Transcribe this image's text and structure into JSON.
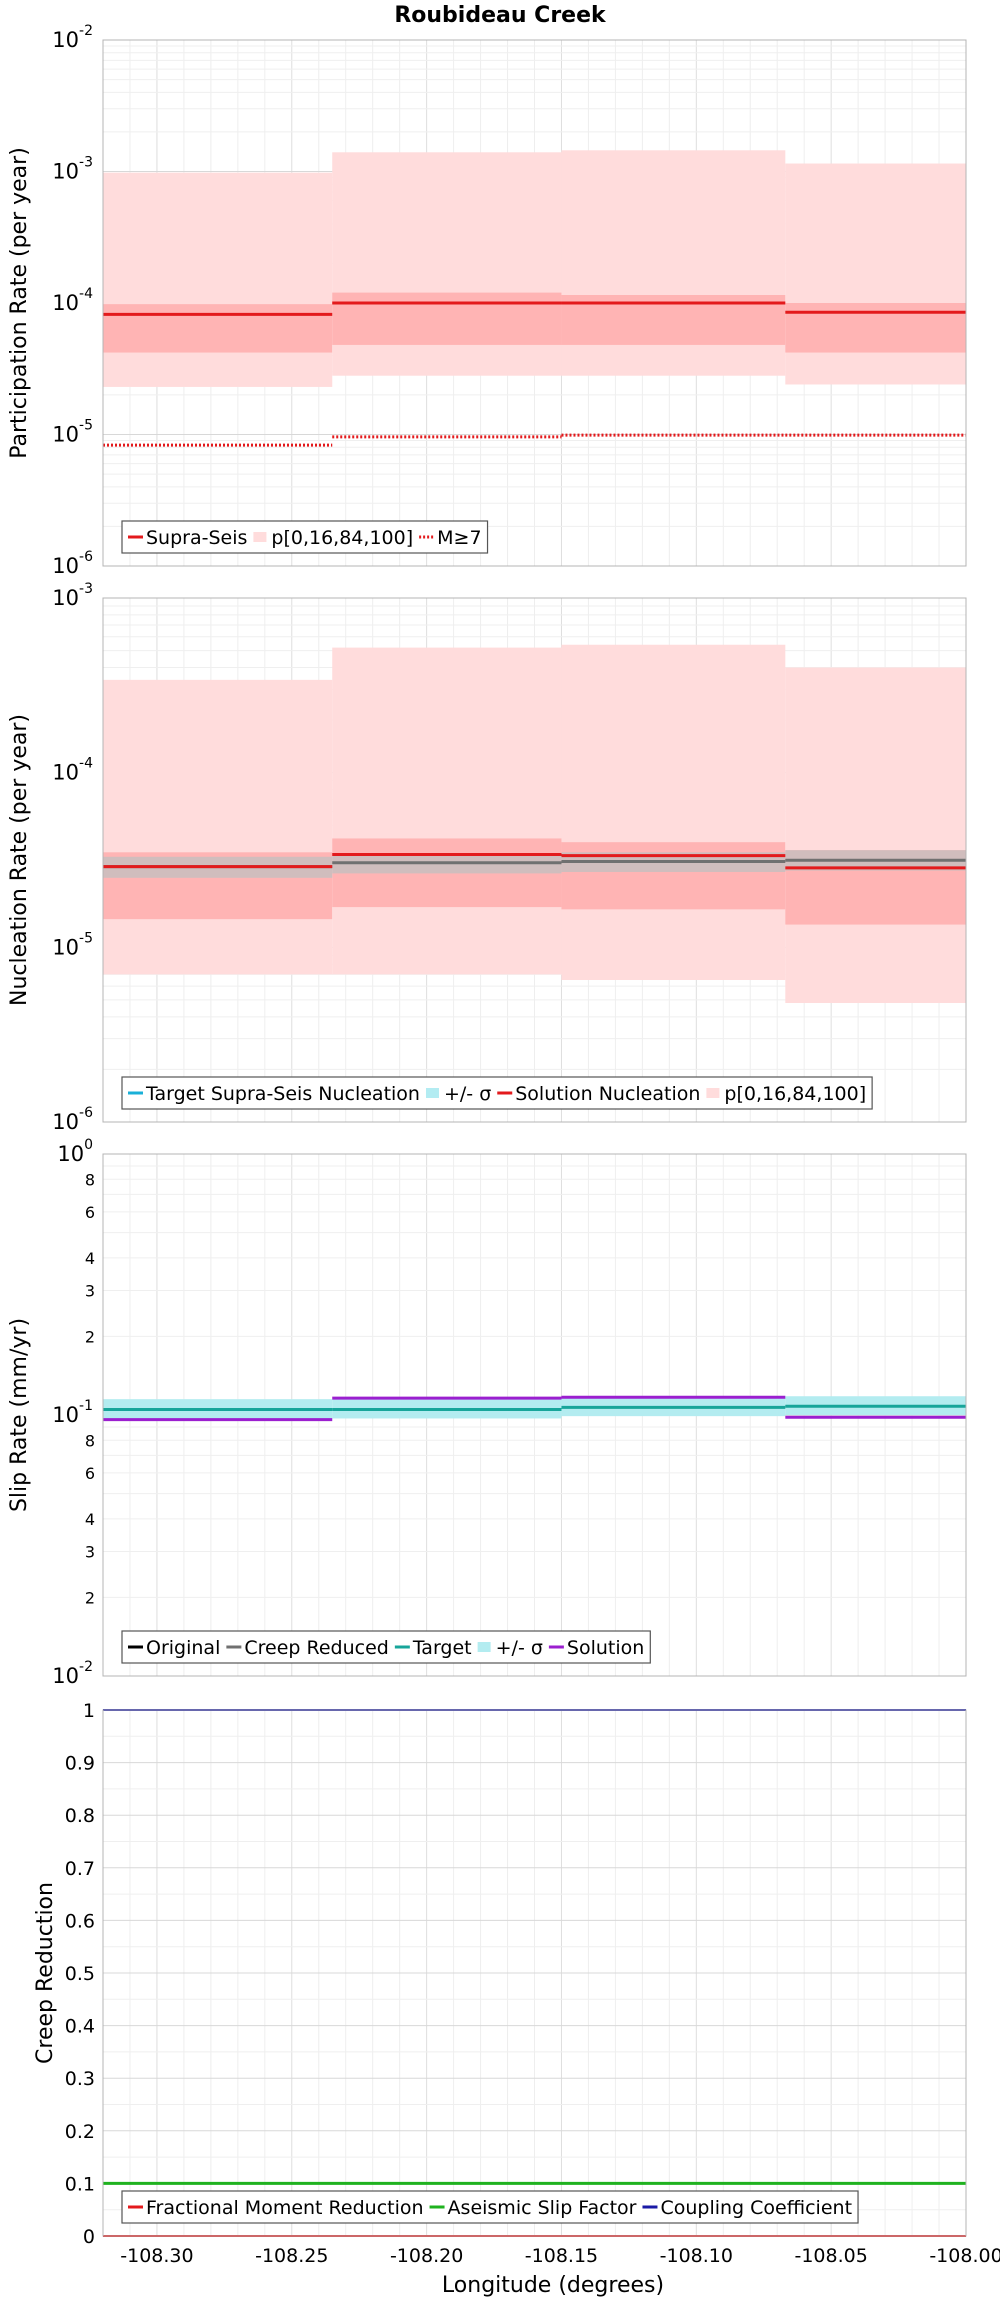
{
  "title": "Roubideau Creek",
  "xlabel": "Longitude (degrees)",
  "chart_data": [
    {
      "type": "step",
      "ylabel": "Participation Rate (per year)",
      "yscale": "log",
      "ylim": [
        1e-06,
        0.01
      ],
      "xlim": [
        -108.32,
        -108.0
      ],
      "x_tick_labels": [
        "-108.30",
        "-108.25",
        "-108.20",
        "-108.15",
        "-108.10",
        "-108.05",
        "-108.00"
      ],
      "y_tick_labels": [
        {
          "base": "10",
          "exp": "-6"
        },
        {
          "base": "10",
          "exp": "-5"
        },
        {
          "base": "10",
          "exp": "-4"
        },
        {
          "base": "10",
          "exp": "-3"
        },
        {
          "base": "10",
          "exp": "-2"
        }
      ],
      "segments": [
        {
          "x": [
            -108.32,
            -108.235
          ],
          "supra_seis": 8.2e-05,
          "p0": 2.3e-05,
          "p16": 4.2e-05,
          "p84": 9.8e-05,
          "p100": 0.00098,
          "m_ge_7": 8.3e-06
        },
        {
          "x": [
            -108.235,
            -108.15
          ],
          "supra_seis": 0.0001,
          "p0": 2.8e-05,
          "p16": 4.8e-05,
          "p84": 0.00012,
          "p100": 0.0014,
          "m_ge_7": 9.6e-06
        },
        {
          "x": [
            -108.15,
            -108.067
          ],
          "supra_seis": 0.0001,
          "p0": 2.8e-05,
          "p16": 4.8e-05,
          "p84": 0.000115,
          "p100": 0.00145,
          "m_ge_7": 9.9e-06
        },
        {
          "x": [
            -108.067,
            -108.0
          ],
          "supra_seis": 8.5e-05,
          "p0": 2.4e-05,
          "p16": 4.2e-05,
          "p84": 0.0001,
          "p100": 0.00115,
          "m_ge_7": 9.9e-06
        }
      ],
      "legend": [
        "Supra-Seis",
        "p[0,16,84,100]",
        "M≥7"
      ],
      "colors": {
        "supra_seis": "#e31a1c",
        "band_outer": "#ffdcdc",
        "band_inner": "#ffb4b4",
        "m7": "#e31a1c"
      }
    },
    {
      "type": "step",
      "ylabel": "Nucleation Rate (per year)",
      "yscale": "log",
      "ylim": [
        1e-06,
        0.001
      ],
      "xlim": [
        -108.32,
        -108.0
      ],
      "x_tick_labels": [
        "-108.30",
        "-108.25",
        "-108.20",
        "-108.15",
        "-108.10",
        "-108.05",
        "-108.00"
      ],
      "y_tick_labels": [
        {
          "base": "10",
          "exp": "-6"
        },
        {
          "base": "10",
          "exp": "-5"
        },
        {
          "base": "10",
          "exp": "-4"
        },
        {
          "base": "10",
          "exp": "-3"
        }
      ],
      "segments": [
        {
          "x": [
            -108.32,
            -108.235
          ],
          "target": 2.9e-05,
          "target_lo": 2.5e-05,
          "target_hi": 3.3e-05,
          "solution": 2.9e-05,
          "p0": 7e-06,
          "p16": 1.45e-05,
          "p84": 3.5e-05,
          "p100": 0.00034
        },
        {
          "x": [
            -108.235,
            -108.15
          ],
          "target": 3.05e-05,
          "target_lo": 2.65e-05,
          "target_hi": 3.45e-05,
          "solution": 3.4e-05,
          "p0": 7e-06,
          "p16": 1.7e-05,
          "p84": 4.2e-05,
          "p100": 0.00052
        },
        {
          "x": [
            -108.15,
            -108.067
          ],
          "target": 3.1e-05,
          "target_lo": 2.7e-05,
          "target_hi": 3.5e-05,
          "solution": 3.35e-05,
          "p0": 6.5e-06,
          "p16": 1.65e-05,
          "p84": 4e-05,
          "p100": 0.00054
        },
        {
          "x": [
            -108.067,
            -108.0
          ],
          "target": 3.15e-05,
          "target_lo": 2.75e-05,
          "target_hi": 3.6e-05,
          "solution": 2.85e-05,
          "p0": 4.8e-06,
          "p16": 1.35e-05,
          "p84": 3.6e-05,
          "p100": 0.0004
        }
      ],
      "legend": [
        "Target Supra-Seis Nucleation",
        "+/- σ",
        "Solution Nucleation",
        "p[0,16,84,100]"
      ],
      "colors": {
        "target": "#707070",
        "target_band": "#c0c0c0",
        "solution": "#e31a1c",
        "band_outer": "#ffdcdc",
        "band_inner": "#ffb4b4",
        "legend_target": "#1ab0d8",
        "legend_sigma": "#b3ecf2"
      }
    },
    {
      "type": "step",
      "ylabel": "Slip Rate (mm/yr)",
      "yscale": "log",
      "ylim": [
        0.01,
        1.0
      ],
      "xlim": [
        -108.32,
        -108.0
      ],
      "x_tick_labels": [
        "-108.30",
        "-108.25",
        "-108.20",
        "-108.15",
        "-108.10",
        "-108.05",
        "-108.00"
      ],
      "y_tick_labels": [
        {
          "base": "10",
          "exp": "-2"
        },
        {
          "base": "10",
          "exp": "-1"
        },
        {
          "base": "10",
          "exp": "0"
        }
      ],
      "y_minor_labels": [
        {
          "value": 0.02,
          "label": "2"
        },
        {
          "value": 0.03,
          "label": "3"
        },
        {
          "value": 0.04,
          "label": "4"
        },
        {
          "value": 0.06,
          "label": "6"
        },
        {
          "value": 0.08,
          "label": "8"
        },
        {
          "value": 0.2,
          "label": "2"
        },
        {
          "value": 0.3,
          "label": "3"
        },
        {
          "value": 0.4,
          "label": "4"
        },
        {
          "value": 0.6,
          "label": "6"
        },
        {
          "value": 0.8,
          "label": "8"
        }
      ],
      "segments": [
        {
          "x": [
            -108.32,
            -108.235
          ],
          "target": 0.105,
          "target_lo": 0.097,
          "target_hi": 0.115,
          "solution": 0.096
        },
        {
          "x": [
            -108.235,
            -108.15
          ],
          "target": 0.105,
          "target_lo": 0.097,
          "target_hi": 0.115,
          "solution": 0.116
        },
        {
          "x": [
            -108.15,
            -108.067
          ],
          "target": 0.107,
          "target_lo": 0.099,
          "target_hi": 0.117,
          "solution": 0.117
        },
        {
          "x": [
            -108.067,
            -108.0
          ],
          "target": 0.108,
          "target_lo": 0.1,
          "target_hi": 0.118,
          "solution": 0.098
        }
      ],
      "legend": [
        "Original",
        "Creep Reduced",
        "Target",
        "+/- σ",
        "Solution"
      ],
      "colors": {
        "original": "#000000",
        "creep_reduced": "#707070",
        "target": "#17a59a",
        "target_band": "#b3ecf0",
        "solution": "#9b1fcf"
      }
    },
    {
      "type": "line",
      "ylabel": "Creep Reduction",
      "yscale": "linear",
      "ylim": [
        0,
        1
      ],
      "xlim": [
        -108.32,
        -108.0
      ],
      "x_tick_labels": [
        "-108.30",
        "-108.25",
        "-108.20",
        "-108.15",
        "-108.10",
        "-108.05",
        "-108.00"
      ],
      "y_tick_labels": [
        "0",
        "0.1",
        "0.2",
        "0.3",
        "0.4",
        "0.5",
        "0.6",
        "0.7",
        "0.8",
        "0.9",
        "1"
      ],
      "series": [
        {
          "name": "Fractional Moment Reduction",
          "value": 0.0
        },
        {
          "name": "Aseismic Slip Factor",
          "value": 0.1
        },
        {
          "name": "Coupling Coefficient",
          "value": 1.0
        }
      ],
      "legend": [
        "Fractional Moment Reduction",
        "Aseismic Slip Factor",
        "Coupling Coefficient"
      ],
      "colors": {
        "fractional": "#e31a1c",
        "aseismic": "#1fb21f",
        "coupling": "#1a1aa6"
      }
    }
  ]
}
